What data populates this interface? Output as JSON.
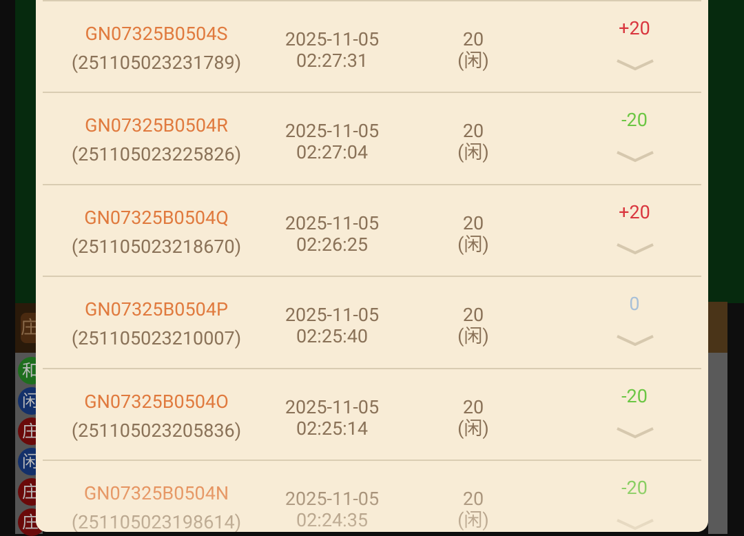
{
  "colors": {
    "win": "#d9363e",
    "loss": "#6cc644",
    "zero": "#a8c0d8",
    "id": "#e07a3e",
    "text": "#8a7258"
  },
  "background": {
    "left_badges": [
      "庄",
      "和",
      "闲",
      "庄",
      "闲",
      "庄",
      "庄"
    ]
  },
  "records": [
    {
      "game_id": "GN07325B0504S",
      "order_no": "(251105023231789)",
      "date": "2025-11-05",
      "time": "02:27:31",
      "bet": "20",
      "side": "(闲)",
      "result": "+20",
      "outcome": "win"
    },
    {
      "game_id": "GN07325B0504R",
      "order_no": "(251105023225826)",
      "date": "2025-11-05",
      "time": "02:27:04",
      "bet": "20",
      "side": "(闲)",
      "result": "-20",
      "outcome": "loss"
    },
    {
      "game_id": "GN07325B0504Q",
      "order_no": "(251105023218670)",
      "date": "2025-11-05",
      "time": "02:26:25",
      "bet": "20",
      "side": "(闲)",
      "result": "+20",
      "outcome": "win"
    },
    {
      "game_id": "GN07325B0504P",
      "order_no": "(251105023210007)",
      "date": "2025-11-05",
      "time": "02:25:40",
      "bet": "20",
      "side": "(闲)",
      "result": "0",
      "outcome": "zero"
    },
    {
      "game_id": "GN07325B0504O",
      "order_no": "(251105023205836)",
      "date": "2025-11-05",
      "time": "02:25:14",
      "bet": "20",
      "side": "(闲)",
      "result": "-20",
      "outcome": "loss"
    },
    {
      "game_id": "GN07325B0504N",
      "order_no": "(251105023198614)",
      "date": "2025-11-05",
      "time": "02:24:35",
      "bet": "20",
      "side": "(闲)",
      "result": "-20",
      "outcome": "loss"
    }
  ]
}
